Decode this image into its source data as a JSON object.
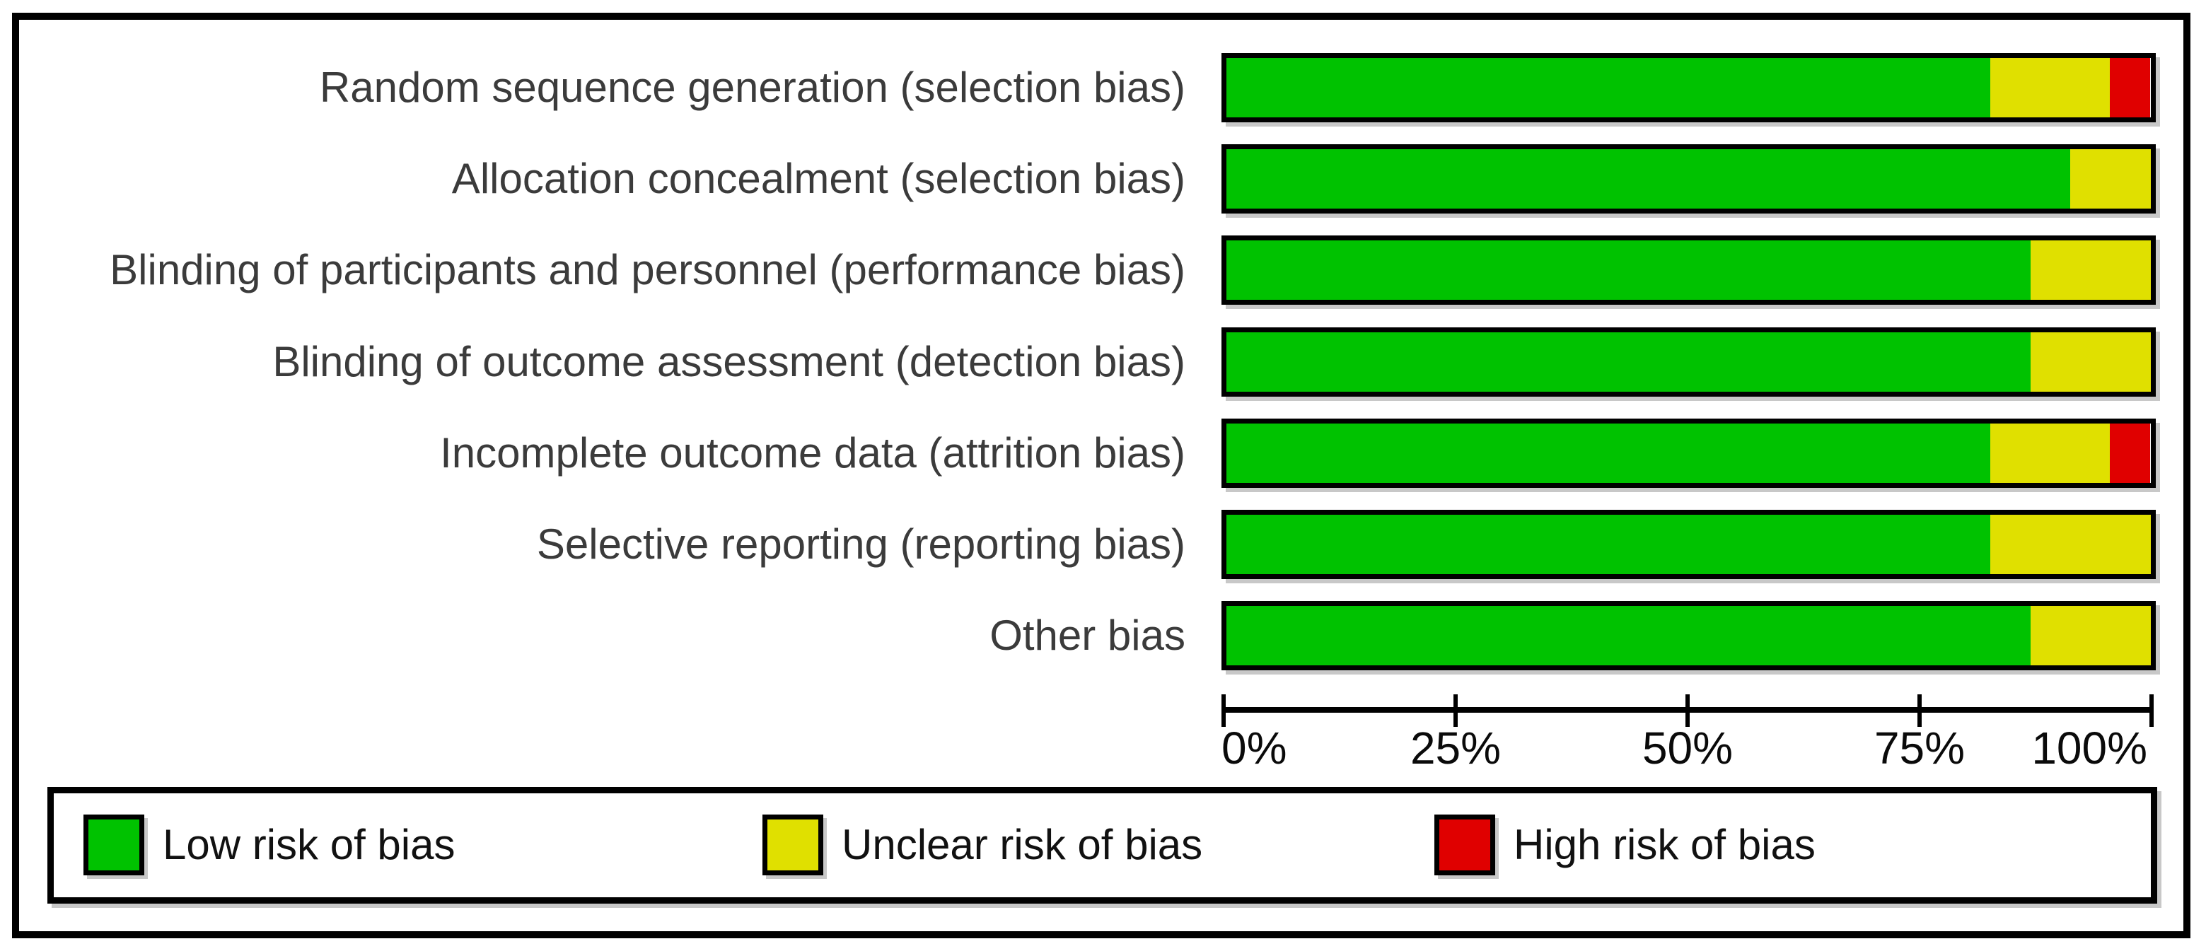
{
  "chart_data": {
    "type": "bar",
    "orientation": "horizontal",
    "stacked": true,
    "unit": "percent",
    "title": "",
    "xlabel": "",
    "ylabel": "",
    "categories": [
      "Random sequence generation (selection bias)",
      "Allocation concealment (selection bias)",
      "Blinding of participants and personnel (performance bias)",
      "Blinding of outcome assessment (detection bias)",
      "Incomplete outcome data (attrition bias)",
      "Selective reporting (reporting bias)",
      "Other bias"
    ],
    "series": [
      {
        "name": "Low risk of bias",
        "color": "#00c200",
        "values": [
          82.6,
          91.3,
          87.0,
          87.0,
          82.6,
          82.6,
          87.0
        ]
      },
      {
        "name": "Unclear risk of bias",
        "color": "#e0e000",
        "values": [
          13.0,
          8.7,
          13.0,
          13.0,
          13.0,
          17.4,
          13.0
        ]
      },
      {
        "name": "High risk of bias",
        "color": "#e00000",
        "values": [
          4.3,
          0,
          0,
          0,
          4.3,
          0,
          0
        ]
      }
    ],
    "x_axis": {
      "range": [
        0,
        100
      ],
      "tick_labels": [
        "0%",
        "25%",
        "50%",
        "75%",
        "100%"
      ],
      "tick_values": [
        0,
        25,
        50,
        75,
        100
      ],
      "grid": false
    },
    "legend": {
      "position": "bottom",
      "items": [
        "Low risk of bias",
        "Unclear risk of bias",
        "High risk of bias"
      ]
    },
    "style": {
      "bar_border_color": "#000000",
      "axis_color": "#000000",
      "label_color": "#3b3b3b",
      "shadow_color": "#c8c8c8",
      "background": "#ffffff"
    }
  }
}
